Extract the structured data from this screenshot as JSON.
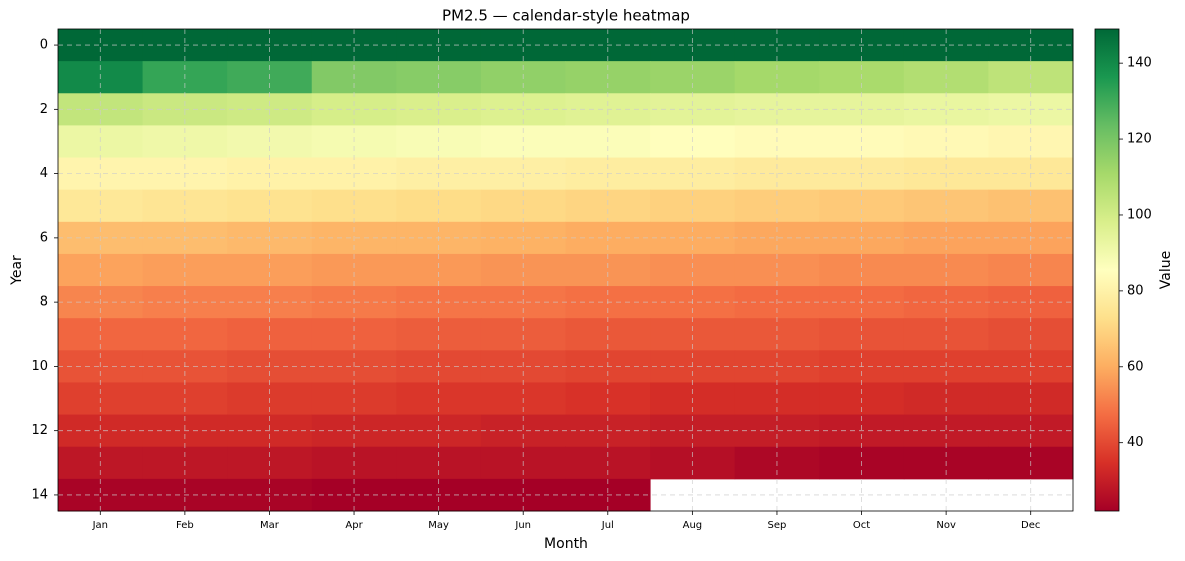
{
  "chart_data": {
    "type": "heatmap",
    "title": "PM2.5 — calendar-style heatmap",
    "x_label": "Month",
    "y_label": "Year",
    "colorbar_label": "Value",
    "categories": [
      "Jan",
      "Feb",
      "Mar",
      "Apr",
      "May",
      "Jun",
      "Jul",
      "Aug",
      "Sep",
      "Oct",
      "Nov",
      "Dec"
    ],
    "y": [
      0,
      1,
      2,
      3,
      4,
      5,
      6,
      7,
      8,
      9,
      10,
      11,
      12,
      13,
      14
    ],
    "ylim": [
      14.5,
      -0.5
    ],
    "yticks": [
      0,
      2,
      4,
      6,
      8,
      10,
      12,
      14
    ],
    "cmap": "RdYlGn",
    "clim": [
      22,
      149
    ],
    "cticks": [
      40,
      60,
      80,
      100,
      120,
      140
    ],
    "grid": true,
    "values": [
      [
        149,
        149,
        149,
        149,
        149,
        149,
        149,
        149,
        149,
        149,
        149,
        149
      ],
      [
        140,
        132,
        130,
        118,
        117,
        115,
        114,
        113,
        111,
        110,
        108,
        105
      ],
      [
        104,
        102,
        101,
        99,
        98,
        97,
        96,
        95,
        94,
        94,
        93,
        92
      ],
      [
        92,
        91,
        90,
        89,
        88,
        87,
        87,
        85,
        84,
        84,
        83,
        82
      ],
      [
        81,
        81,
        80,
        80,
        79,
        79,
        78,
        78,
        77,
        77,
        76,
        76
      ],
      [
        76,
        75,
        74,
        73,
        72,
        71,
        70,
        69,
        68,
        67,
        66,
        65
      ],
      [
        64,
        64,
        63,
        62,
        62,
        61,
        60,
        60,
        59,
        59,
        58,
        58
      ],
      [
        58,
        57,
        57,
        56,
        56,
        55,
        55,
        54,
        54,
        53,
        53,
        52
      ],
      [
        52,
        51,
        51,
        50,
        49,
        49,
        48,
        48,
        47,
        47,
        46,
        45
      ],
      [
        46,
        46,
        45,
        45,
        44,
        44,
        43,
        43,
        43,
        42,
        42,
        41
      ],
      [
        42,
        42,
        41,
        41,
        40,
        40,
        39,
        39,
        39,
        38,
        38,
        38
      ],
      [
        38,
        38,
        37,
        37,
        36,
        36,
        35,
        34,
        34,
        34,
        33,
        33
      ],
      [
        33,
        33,
        33,
        32,
        32,
        31,
        31,
        30,
        30,
        29,
        29,
        29
      ],
      [
        28,
        28,
        28,
        27,
        27,
        27,
        27,
        26,
        24,
        23,
        23,
        23
      ],
      [
        23,
        23,
        23,
        22,
        22,
        22,
        22,
        null,
        null,
        null,
        null,
        null
      ]
    ]
  }
}
